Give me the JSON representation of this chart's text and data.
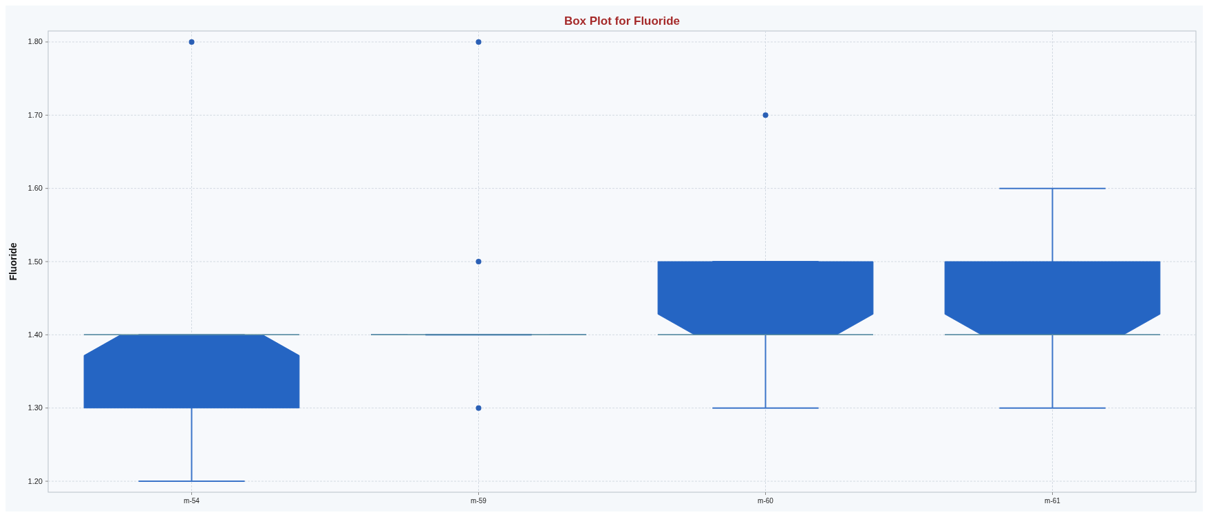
{
  "chart_data": {
    "type": "box",
    "title": "Box Plot for Fluoride",
    "ylabel": "Fluoride",
    "categories": [
      "m-54",
      "m-59",
      "m-60",
      "m-61"
    ],
    "boxes": [
      {
        "low": 1.2,
        "q1": 1.3,
        "median": 1.4,
        "q3": 1.4,
        "high": 1.4,
        "outliers": [
          1.8
        ]
      },
      {
        "low": 1.4,
        "q1": 1.4,
        "median": 1.4,
        "q3": 1.4,
        "high": 1.4,
        "outliers": [
          1.3,
          1.5,
          1.8
        ]
      },
      {
        "low": 1.3,
        "q1": 1.4,
        "median": 1.4,
        "q3": 1.5,
        "high": 1.5,
        "outliers": [
          1.7
        ]
      },
      {
        "low": 1.3,
        "q1": 1.4,
        "median": 1.4,
        "q3": 1.5,
        "high": 1.6
      }
    ],
    "color": "#2565c3",
    "ylim": [
      1.185,
      1.815
    ],
    "yticks": [
      {
        "value": 1.2,
        "label": "1.20"
      },
      {
        "value": 1.3,
        "label": "1.30"
      },
      {
        "value": 1.4,
        "label": "1.40"
      },
      {
        "value": 1.5,
        "label": "1.50"
      },
      {
        "value": 1.6,
        "label": "1.60"
      },
      {
        "value": 1.7,
        "label": "1.70"
      },
      {
        "value": 1.8,
        "label": "1.80"
      }
    ],
    "grid": true
  }
}
